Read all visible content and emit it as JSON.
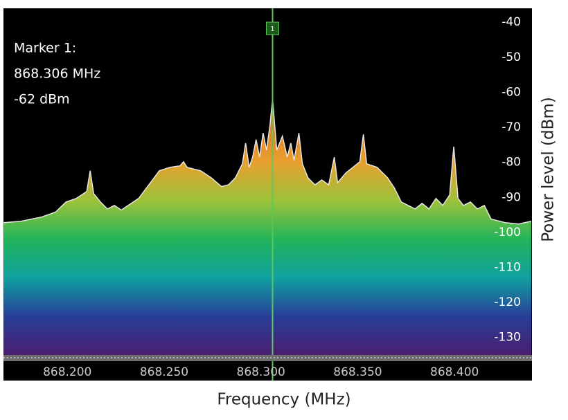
{
  "chart_data": {
    "type": "area",
    "x_label": "Frequency (MHz)",
    "y_label": "Power level (dBm)",
    "xlim": [
      868.167,
      868.44
    ],
    "ylim": [
      -135,
      -36
    ],
    "xticks": [
      {
        "value": 868.2,
        "label": "868.200"
      },
      {
        "value": 868.25,
        "label": "868.250"
      },
      {
        "value": 868.3,
        "label": "868.300"
      },
      {
        "value": 868.35,
        "label": "868.350"
      },
      {
        "value": 868.4,
        "label": "868.400"
      }
    ],
    "yticks": [
      -40,
      -50,
      -60,
      -70,
      -80,
      -90,
      -100,
      -110,
      -120,
      -130
    ],
    "x": [
      868.1671,
      868.1761,
      868.1868,
      868.1939,
      868.1993,
      868.2046,
      868.21,
      868.2118,
      868.2136,
      868.2171,
      868.2207,
      868.2243,
      868.2279,
      868.2314,
      868.2368,
      868.2421,
      868.2475,
      868.2529,
      868.2582,
      868.26,
      868.2618,
      868.2689,
      868.2743,
      868.2796,
      868.2832,
      868.2868,
      868.2904,
      868.2921,
      868.2939,
      868.2957,
      868.2975,
      868.2993,
      868.3011,
      868.3029,
      868.3046,
      868.306,
      868.3082,
      868.3111,
      868.3136,
      868.3154,
      868.3171,
      868.3196,
      868.3214,
      868.3243,
      868.3279,
      868.3314,
      868.335,
      868.3379,
      868.3396,
      868.3439,
      868.3475,
      868.3511,
      868.3529,
      868.3546,
      868.36,
      868.3654,
      868.3689,
      868.3725,
      868.3761,
      868.3796,
      868.3832,
      868.3868,
      868.3904,
      868.3939,
      868.3975,
      868.3996,
      868.4018,
      868.4046,
      868.4082,
      868.4118,
      868.4154,
      868.4189,
      868.4261,
      868.4332,
      868.4396
    ],
    "values": [
      -97.2,
      -96.8,
      -95.6,
      -94.2,
      -91.3,
      -90.3,
      -88.3,
      -82.4,
      -88.9,
      -91.3,
      -93.3,
      -92.3,
      -93.6,
      -92.3,
      -90.3,
      -86.4,
      -82.4,
      -81.4,
      -81.0,
      -79.8,
      -81.4,
      -82.4,
      -84.4,
      -86.9,
      -86.4,
      -84.4,
      -80.4,
      -74.5,
      -81.4,
      -78.5,
      -73.5,
      -78.5,
      -71.6,
      -76.5,
      -69.6,
      -62,
      -76.5,
      -72.5,
      -78.5,
      -74.5,
      -79.4,
      -71.6,
      -80.4,
      -84.4,
      -86.4,
      -85.0,
      -86.4,
      -78.5,
      -85.8,
      -83.0,
      -81.4,
      -79.8,
      -72.0,
      -80.4,
      -81.4,
      -84.4,
      -87.3,
      -91.3,
      -92.3,
      -93.3,
      -91.7,
      -93.3,
      -90.3,
      -92.3,
      -89.3,
      -75.5,
      -90.3,
      -92.3,
      -91.3,
      -93.3,
      -92.3,
      -96.2,
      -97.2,
      -97.6,
      -96.8
    ],
    "colors": [
      "#d03c10",
      "#d84c16",
      "#e05e1e",
      "#e47a22",
      "#e8a030",
      "#9cc23a",
      "#22b45a",
      "#10a0a0",
      "#283e98",
      "#4c1e70"
    ],
    "line_color": "#e6e6e6",
    "marker": {
      "label": "1",
      "x": 868.306,
      "color": "#5ac85a"
    },
    "annotation": [
      "Marker 1:",
      "868.306 MHz",
      "-62 dBm"
    ]
  }
}
